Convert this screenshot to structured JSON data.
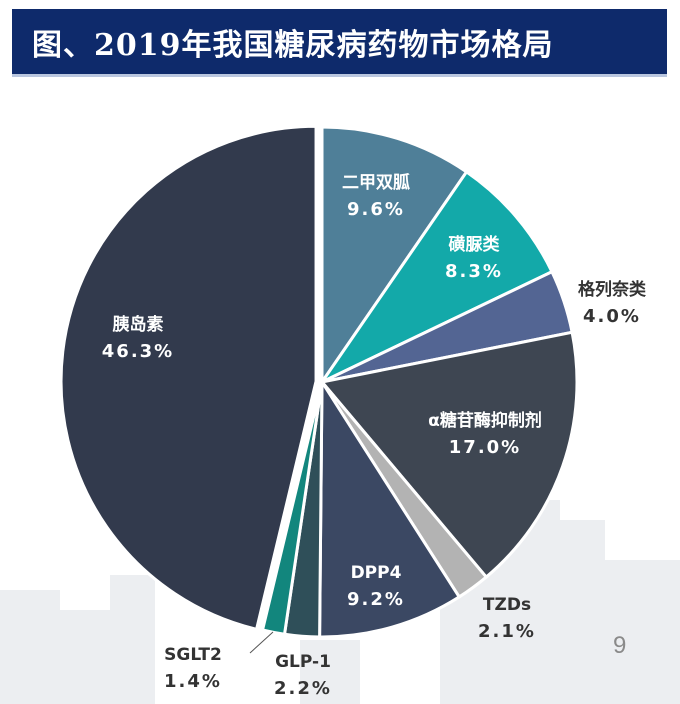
{
  "title": "图、2019年我国糖尿病药物市场格局",
  "page_number": "9",
  "chart_data": {
    "type": "pie",
    "slices": [
      {
        "label": "二甲双胍",
        "value": 9.6,
        "value_text": "9.6%",
        "color": "#4f7f98",
        "label_color": "#ffffff",
        "label_inside": true
      },
      {
        "label": "磺脲类",
        "value": 8.3,
        "value_text": "8.3%",
        "color": "#13a9a9",
        "label_color": "#ffffff",
        "label_inside": true
      },
      {
        "label": "格列奈类",
        "value": 4.0,
        "value_text": "4.0%",
        "color": "#536593",
        "label_color": "#333333",
        "label_inside": false
      },
      {
        "label": "α糖苷酶抑制剂",
        "value": 17.0,
        "value_text": "17.0%",
        "color": "#3e4652",
        "label_color": "#ffffff",
        "label_inside": true
      },
      {
        "label": "TZDs",
        "value": 2.1,
        "value_text": "2.1%",
        "color": "#b3b3b3",
        "label_color": "#333333",
        "label_inside": false
      },
      {
        "label": "DPP4",
        "value": 9.2,
        "value_text": "9.2%",
        "color": "#3b4863",
        "label_color": "#ffffff",
        "label_inside": true
      },
      {
        "label": "GLP-1",
        "value": 2.2,
        "value_text": "2.2%",
        "color": "#2f4f59",
        "label_color": "#333333",
        "label_inside": false
      },
      {
        "label": "SGLT2",
        "value": 1.4,
        "value_text": "1.4%",
        "color": "#12867d",
        "label_color": "#333333",
        "label_inside": false
      },
      {
        "label": "胰岛素",
        "value": 46.3,
        "value_text": "46.3%",
        "color": "#323a4d",
        "label_color": "#ffffff",
        "label_inside": true
      }
    ]
  }
}
